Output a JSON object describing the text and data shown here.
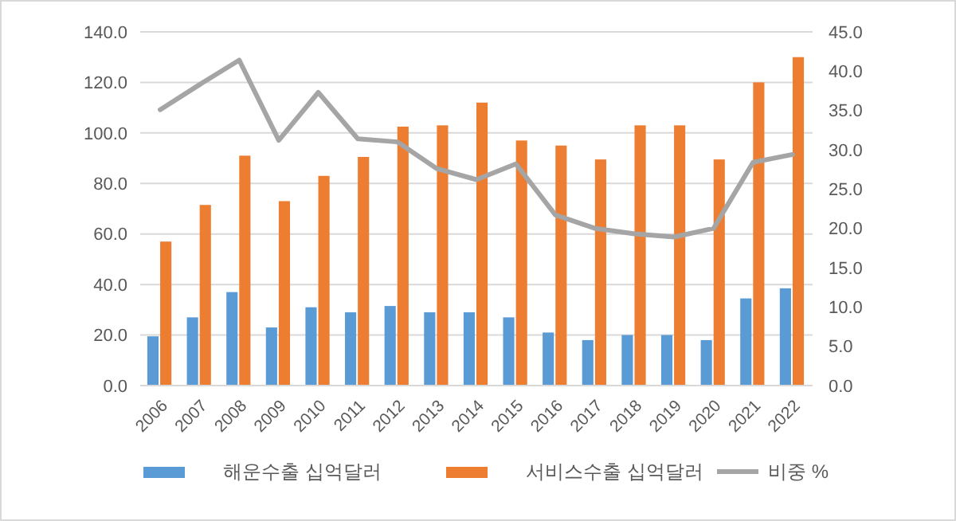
{
  "chart_data": {
    "type": "bar",
    "categories": [
      "2006",
      "2007",
      "2008",
      "2009",
      "2010",
      "2011",
      "2012",
      "2013",
      "2014",
      "2015",
      "2016",
      "2017",
      "2018",
      "2019",
      "2020",
      "2021",
      "2022"
    ],
    "series": [
      {
        "name": "해운수출 십억달러",
        "color": "#5b9bd5",
        "values": [
          19.5,
          27,
          37,
          23,
          31,
          29,
          31.5,
          29,
          29,
          27,
          21,
          18,
          20,
          20,
          18,
          34.5,
          38.5
        ]
      },
      {
        "name": "서비스수출 십억달러",
        "color": "#ed7d31",
        "values": [
          57,
          71.5,
          91,
          73,
          83,
          90.5,
          102.5,
          103,
          112,
          97,
          95,
          89.5,
          103,
          103,
          89.5,
          120,
          130
        ]
      },
      {
        "name": "비중 %",
        "type": "line",
        "axis": "y2",
        "color": "#a5a5a5",
        "values": [
          35.1,
          38.3,
          41.4,
          31.2,
          37.3,
          31.4,
          31,
          27.6,
          26.2,
          28.2,
          21.7,
          20,
          19.3,
          18.9,
          20,
          28.4,
          29.4
        ]
      }
    ],
    "ylim": [
      0,
      140
    ],
    "yticks": [
      {
        "value": 0,
        "label": "0.0"
      },
      {
        "value": 20,
        "label": "20.0"
      },
      {
        "value": 40,
        "label": "40.0"
      },
      {
        "value": 60,
        "label": "60.0"
      },
      {
        "value": 80,
        "label": "80.0"
      },
      {
        "value": 100,
        "label": "100.0"
      },
      {
        "value": 120,
        "label": "120.0"
      },
      {
        "value": 140,
        "label": "140.0"
      }
    ],
    "y2lim": [
      0,
      45
    ],
    "y2ticks": [
      {
        "value": 0,
        "label": "0.0"
      },
      {
        "value": 5,
        "label": "5.0"
      },
      {
        "value": 10,
        "label": "10.0"
      },
      {
        "value": 15,
        "label": "15.0"
      },
      {
        "value": 20,
        "label": "20.0"
      },
      {
        "value": 25,
        "label": "25.0"
      },
      {
        "value": 30,
        "label": "30.0"
      },
      {
        "value": 35,
        "label": "35.0"
      },
      {
        "value": 40,
        "label": "40.0"
      },
      {
        "value": 45,
        "label": "45.0"
      }
    ],
    "grid": "y",
    "legend": "bottom",
    "marker": "none",
    "line_style": "solid"
  }
}
